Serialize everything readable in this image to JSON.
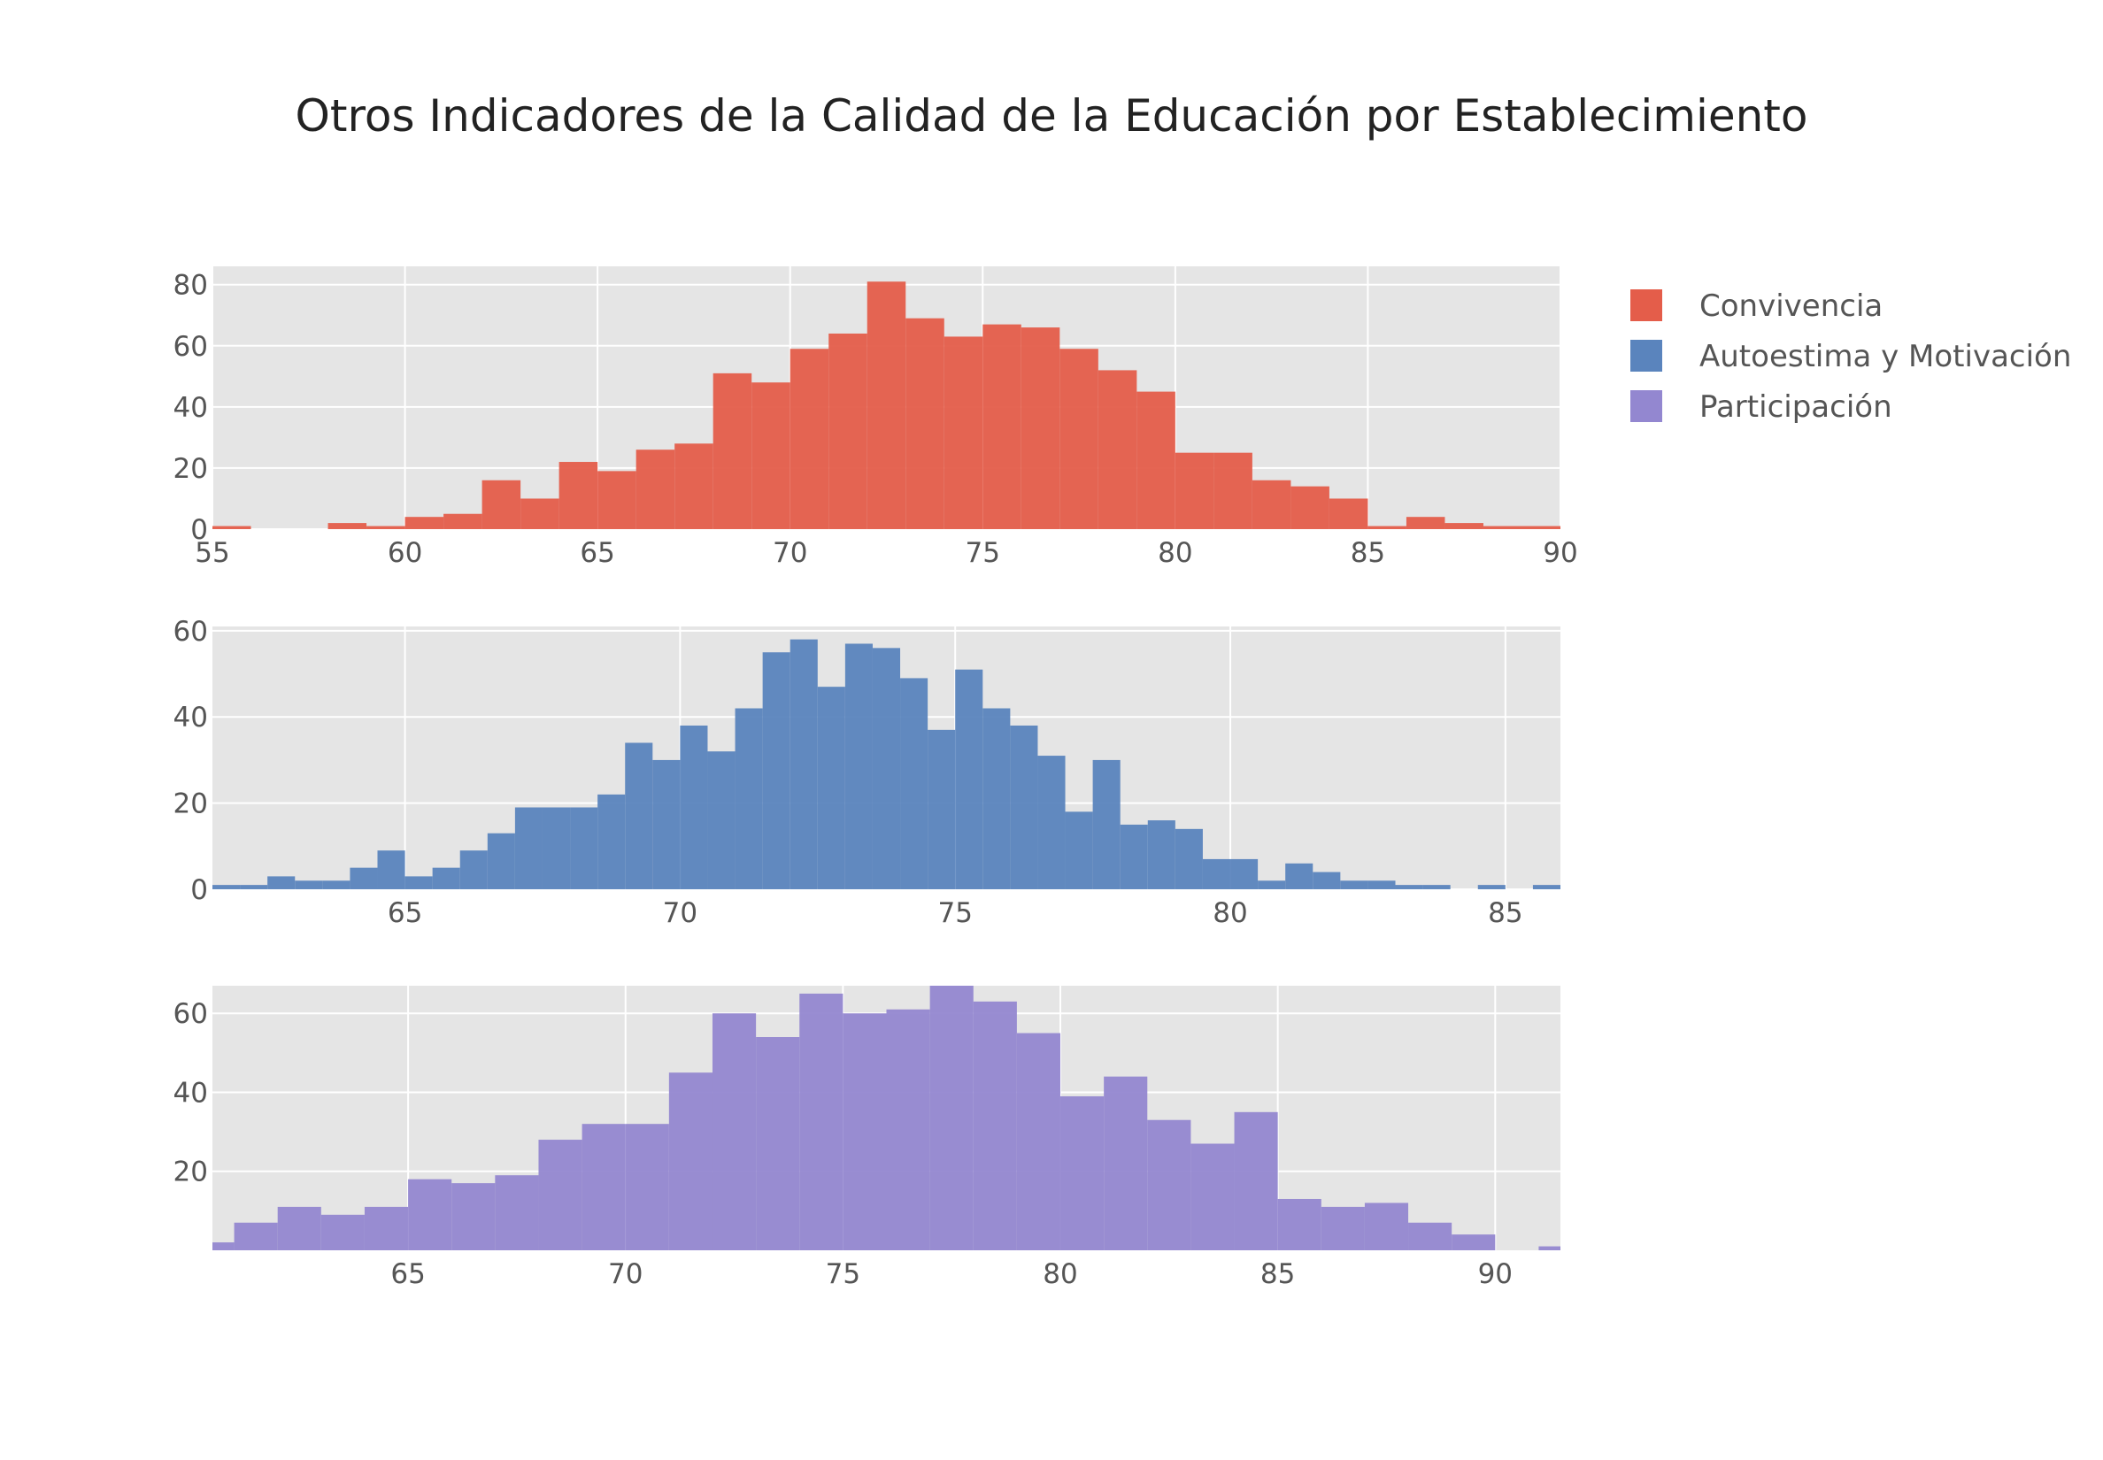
{
  "chart_data": {
    "type": "bar",
    "title": "Otros Indicadores de la Calidad de la Educación por Establecimiento",
    "legend": {
      "placement": "top-right"
    },
    "grid": true,
    "subplots": [
      {
        "name": "Convivencia",
        "color": "#e45d4a",
        "bin_width": 1,
        "x_range": [
          55,
          90
        ],
        "y_range": [
          0,
          86
        ],
        "x_ticks": [
          55,
          60,
          65,
          70,
          75,
          80,
          85,
          90
        ],
        "x_tick_labels": [
          "55",
          "60",
          "65",
          "70",
          "75",
          "80",
          "85",
          "90"
        ],
        "y_ticks": [
          0,
          20,
          40,
          60,
          80
        ],
        "y_tick_labels": [
          "0",
          "20",
          "40",
          "60",
          "80"
        ],
        "bins": [
          {
            "x": 55,
            "count": 1
          },
          {
            "x": 56,
            "count": 0
          },
          {
            "x": 57,
            "count": 0
          },
          {
            "x": 58,
            "count": 2
          },
          {
            "x": 59,
            "count": 1
          },
          {
            "x": 60,
            "count": 4
          },
          {
            "x": 61,
            "count": 5
          },
          {
            "x": 62,
            "count": 16
          },
          {
            "x": 63,
            "count": 10
          },
          {
            "x": 64,
            "count": 22
          },
          {
            "x": 65,
            "count": 19
          },
          {
            "x": 66,
            "count": 26
          },
          {
            "x": 67,
            "count": 28
          },
          {
            "x": 68,
            "count": 51
          },
          {
            "x": 69,
            "count": 48
          },
          {
            "x": 70,
            "count": 59
          },
          {
            "x": 71,
            "count": 64
          },
          {
            "x": 72,
            "count": 81
          },
          {
            "x": 73,
            "count": 69
          },
          {
            "x": 74,
            "count": 63
          },
          {
            "x": 75,
            "count": 67
          },
          {
            "x": 76,
            "count": 66
          },
          {
            "x": 77,
            "count": 59
          },
          {
            "x": 78,
            "count": 52
          },
          {
            "x": 79,
            "count": 45
          },
          {
            "x": 80,
            "count": 25
          },
          {
            "x": 81,
            "count": 25
          },
          {
            "x": 82,
            "count": 16
          },
          {
            "x": 83,
            "count": 14
          },
          {
            "x": 84,
            "count": 10
          },
          {
            "x": 85,
            "count": 1
          },
          {
            "x": 86,
            "count": 4
          },
          {
            "x": 87,
            "count": 2
          },
          {
            "x": 88,
            "count": 1
          },
          {
            "x": 89,
            "count": 1
          }
        ]
      },
      {
        "name": "Autoestima y Motivación",
        "color": "#5a84bd",
        "bin_width": 0.5,
        "x_range": [
          61.5,
          86
        ],
        "y_range": [
          0,
          61
        ],
        "x_ticks": [
          65,
          70,
          75,
          80,
          85
        ],
        "x_tick_labels": [
          "65",
          "70",
          "75",
          "80",
          "85"
        ],
        "y_ticks": [
          0,
          20,
          40,
          60
        ],
        "y_tick_labels": [
          "0",
          "20",
          "40",
          "60"
        ],
        "bins": [
          {
            "x": 61.5,
            "count": 1
          },
          {
            "x": 62.0,
            "count": 1
          },
          {
            "x": 62.5,
            "count": 3
          },
          {
            "x": 63.0,
            "count": 2
          },
          {
            "x": 63.5,
            "count": 2
          },
          {
            "x": 64.0,
            "count": 5
          },
          {
            "x": 64.5,
            "count": 9
          },
          {
            "x": 65.0,
            "count": 3
          },
          {
            "x": 65.5,
            "count": 5
          },
          {
            "x": 66.0,
            "count": 9
          },
          {
            "x": 66.5,
            "count": 13
          },
          {
            "x": 67.0,
            "count": 19
          },
          {
            "x": 67.5,
            "count": 19
          },
          {
            "x": 68.0,
            "count": 19
          },
          {
            "x": 68.5,
            "count": 22
          },
          {
            "x": 69.0,
            "count": 34
          },
          {
            "x": 69.5,
            "count": 30
          },
          {
            "x": 70.0,
            "count": 38
          },
          {
            "x": 70.5,
            "count": 32
          },
          {
            "x": 71.0,
            "count": 42
          },
          {
            "x": 71.5,
            "count": 55
          },
          {
            "x": 72.0,
            "count": 58
          },
          {
            "x": 72.5,
            "count": 47
          },
          {
            "x": 73.0,
            "count": 57
          },
          {
            "x": 73.5,
            "count": 56
          },
          {
            "x": 74.0,
            "count": 49
          },
          {
            "x": 74.5,
            "count": 37
          },
          {
            "x": 75.0,
            "count": 51
          },
          {
            "x": 75.5,
            "count": 42
          },
          {
            "x": 76.0,
            "count": 38
          },
          {
            "x": 76.5,
            "count": 31
          },
          {
            "x": 77.0,
            "count": 18
          },
          {
            "x": 77.5,
            "count": 30
          },
          {
            "x": 78.0,
            "count": 15
          },
          {
            "x": 78.5,
            "count": 16
          },
          {
            "x": 79.0,
            "count": 14
          },
          {
            "x": 79.5,
            "count": 7
          },
          {
            "x": 80.0,
            "count": 7
          },
          {
            "x": 80.5,
            "count": 2
          },
          {
            "x": 81.0,
            "count": 6
          },
          {
            "x": 81.5,
            "count": 4
          },
          {
            "x": 82.0,
            "count": 2
          },
          {
            "x": 82.5,
            "count": 2
          },
          {
            "x": 83.0,
            "count": 1
          },
          {
            "x": 83.5,
            "count": 1
          },
          {
            "x": 84.0,
            "count": 0
          },
          {
            "x": 84.5,
            "count": 1
          },
          {
            "x": 85.0,
            "count": 0
          },
          {
            "x": 85.5,
            "count": 1
          }
        ]
      },
      {
        "name": "Participación",
        "color": "#9387d0",
        "bin_width": 1,
        "x_range": [
          60.5,
          91.5
        ],
        "y_range": [
          0,
          67
        ],
        "x_ticks": [
          65,
          70,
          75,
          80,
          85,
          90
        ],
        "x_tick_labels": [
          "65",
          "70",
          "75",
          "80",
          "85",
          "90"
        ],
        "y_ticks": [
          20,
          40,
          60
        ],
        "y_tick_labels": [
          "20",
          "40",
          "60"
        ],
        "bins": [
          {
            "x": 60.0,
            "count": 2
          },
          {
            "x": 61.0,
            "count": 7
          },
          {
            "x": 62.0,
            "count": 11
          },
          {
            "x": 63.0,
            "count": 9
          },
          {
            "x": 64.0,
            "count": 11
          },
          {
            "x": 65.0,
            "count": 18
          },
          {
            "x": 66.0,
            "count": 17
          },
          {
            "x": 67.0,
            "count": 19
          },
          {
            "x": 68.0,
            "count": 28
          },
          {
            "x": 69.0,
            "count": 32
          },
          {
            "x": 70.0,
            "count": 32
          },
          {
            "x": 71.0,
            "count": 45
          },
          {
            "x": 72.0,
            "count": 60
          },
          {
            "x": 73.0,
            "count": 54
          },
          {
            "x": 74.0,
            "count": 65
          },
          {
            "x": 75.0,
            "count": 60
          },
          {
            "x": 76.0,
            "count": 61
          },
          {
            "x": 77.0,
            "count": 67
          },
          {
            "x": 78.0,
            "count": 63
          },
          {
            "x": 79.0,
            "count": 55
          },
          {
            "x": 80.0,
            "count": 39
          },
          {
            "x": 81.0,
            "count": 44
          },
          {
            "x": 82.0,
            "count": 33
          },
          {
            "x": 83.0,
            "count": 27
          },
          {
            "x": 84.0,
            "count": 35
          },
          {
            "x": 85.0,
            "count": 13
          },
          {
            "x": 86.0,
            "count": 11
          },
          {
            "x": 87.0,
            "count": 12
          },
          {
            "x": 88.0,
            "count": 7
          },
          {
            "x": 89.0,
            "count": 4
          },
          {
            "x": 90.0,
            "count": 0
          },
          {
            "x": 91.0,
            "count": 1
          }
        ]
      }
    ]
  }
}
